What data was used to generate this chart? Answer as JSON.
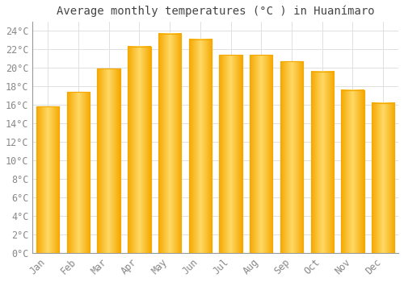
{
  "title": "Average monthly temperatures (°C ) in Huanímaro",
  "months": [
    "Jan",
    "Feb",
    "Mar",
    "Apr",
    "May",
    "Jun",
    "Jul",
    "Aug",
    "Sep",
    "Oct",
    "Nov",
    "Dec"
  ],
  "values": [
    15.8,
    17.4,
    19.9,
    22.3,
    23.7,
    23.1,
    21.4,
    21.4,
    20.7,
    19.6,
    17.6,
    16.2
  ],
  "bar_color_center": "#FFD966",
  "bar_color_edge": "#F5A800",
  "background_color": "#FFFFFF",
  "plot_bg_color": "#FFFFFF",
  "grid_color": "#E0E0E0",
  "text_color": "#888888",
  "title_color": "#444444",
  "ytick_step": 2,
  "ylim": [
    0,
    25
  ],
  "title_fontsize": 10,
  "tick_fontsize": 8.5,
  "bar_width": 0.75
}
